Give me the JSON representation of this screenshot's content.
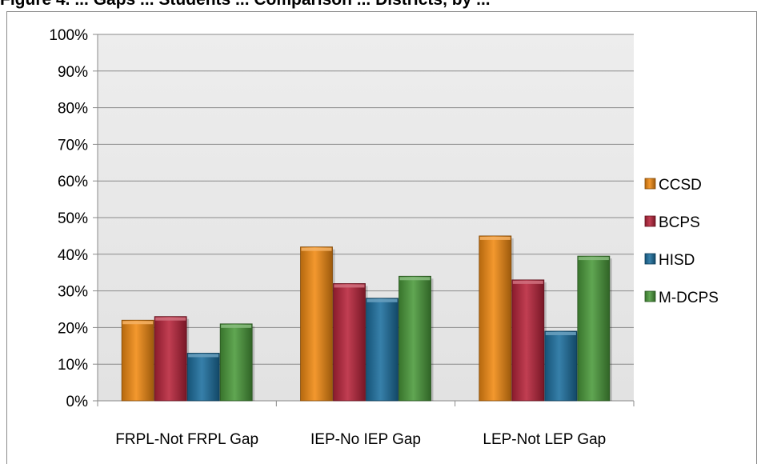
{
  "header": {
    "caption": "Figure 4. ... Gaps ... Students ... Comparison ... Districts, by ..."
  },
  "chart_data": {
    "type": "bar",
    "title": "",
    "xlabel": "",
    "ylabel": "",
    "ylim": [
      0,
      100
    ],
    "y_ticks": [
      "0%",
      "10%",
      "20%",
      "30%",
      "40%",
      "50%",
      "60%",
      "70%",
      "80%",
      "90%",
      "100%"
    ],
    "categories": [
      "FRPL-Not FRPL Gap",
      "IEP-No IEP Gap",
      "LEP-Not LEP Gap"
    ],
    "series": [
      {
        "name": "CCSD",
        "color": "#f18a12",
        "values": [
          22,
          42,
          45
        ]
      },
      {
        "name": "BCPS",
        "color": "#b8243a",
        "values": [
          23,
          32,
          33
        ]
      },
      {
        "name": "HISD",
        "color": "#1c6f9e",
        "values": [
          13,
          28,
          19
        ]
      },
      {
        "name": "M-DCPS",
        "color": "#4a9a3a",
        "values": [
          21,
          34,
          39.5
        ]
      }
    ],
    "legend_position": "right",
    "grid": true,
    "plot_background": "#e8e8e8"
  }
}
